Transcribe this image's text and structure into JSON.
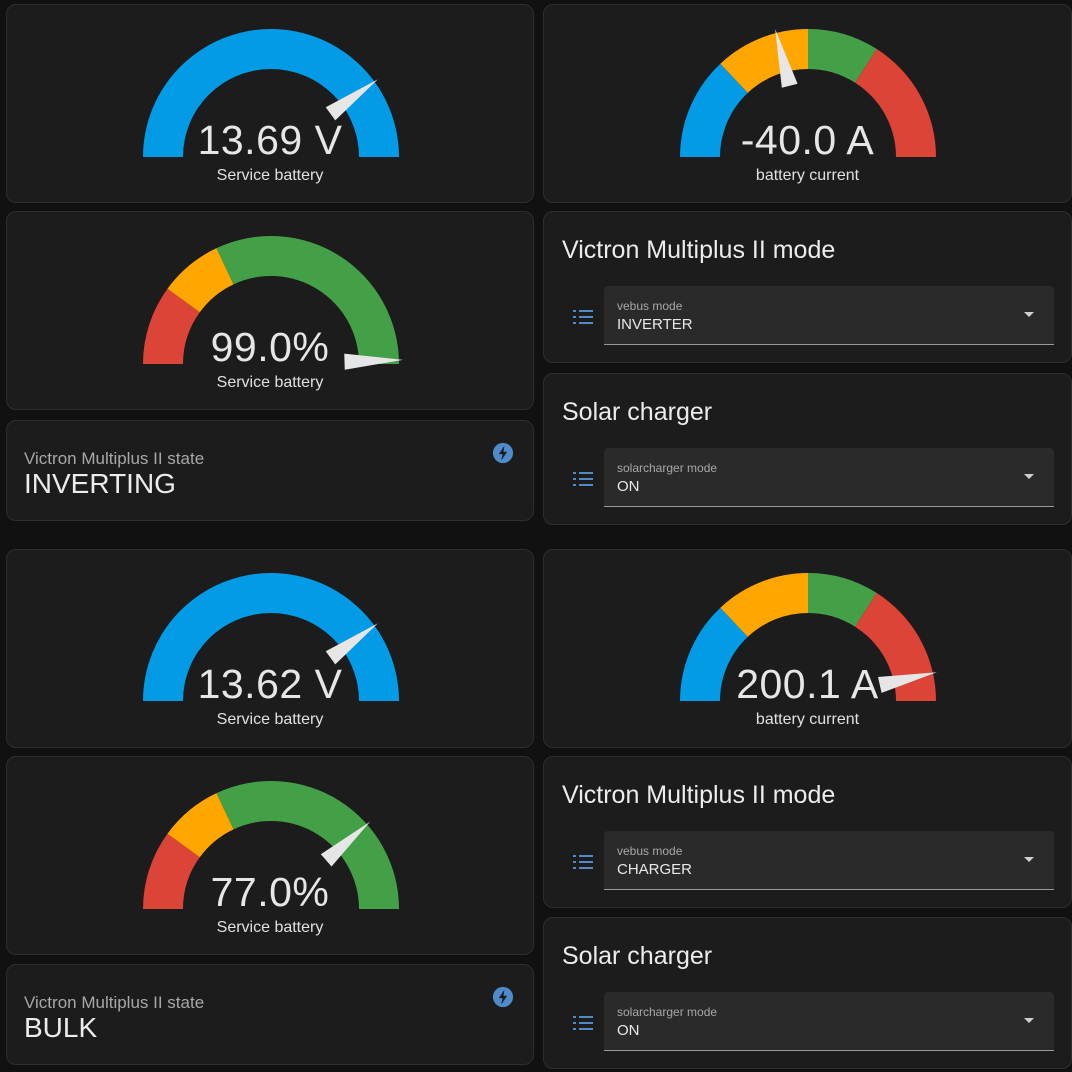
{
  "colors": {
    "background": "#111111",
    "card": "#1c1c1c",
    "blue": "#039be5",
    "orange": "#ffa600",
    "green": "#43a047",
    "red": "#db4437",
    "needle": "#e6e6e6",
    "icon": "#4f8acb"
  },
  "panels": [
    {
      "voltage_gauge": {
        "value": "13.69 V",
        "name": "Service battery",
        "fraction": 0.8
      },
      "current_gauge": {
        "value": "-40.0 A",
        "name": "battery current",
        "fraction": 0.42
      },
      "soc_gauge": {
        "value": "99.0%",
        "name": "Service battery",
        "fraction": 0.99
      },
      "state_card": {
        "title": "Victron Multiplus II state",
        "state": "INVERTING",
        "icon": "flash-icon"
      },
      "mode_card": {
        "heading": "Victron Multiplus II mode",
        "label": "vebus mode",
        "value": "INVERTER",
        "icon": "list-icon"
      },
      "solar_card": {
        "heading": "Solar charger",
        "label": "solarcharger mode",
        "value": "ON",
        "icon": "list-icon"
      }
    },
    {
      "voltage_gauge": {
        "value": "13.62 V",
        "name": "Service battery",
        "fraction": 0.8
      },
      "current_gauge": {
        "value": "200.1 A",
        "name": "battery current",
        "fraction": 0.93
      },
      "soc_gauge": {
        "value": "77.0%",
        "name": "Service battery",
        "fraction": 0.77
      },
      "state_card": {
        "title": "Victron Multiplus II state",
        "state": "BULK",
        "icon": "flash-icon"
      },
      "mode_card": {
        "heading": "Victron Multiplus II mode",
        "label": "vebus mode",
        "value": "CHARGER",
        "icon": "list-icon"
      },
      "solar_card": {
        "heading": "Solar charger",
        "label": "solarcharger mode",
        "value": "ON",
        "icon": "list-icon"
      }
    }
  ]
}
